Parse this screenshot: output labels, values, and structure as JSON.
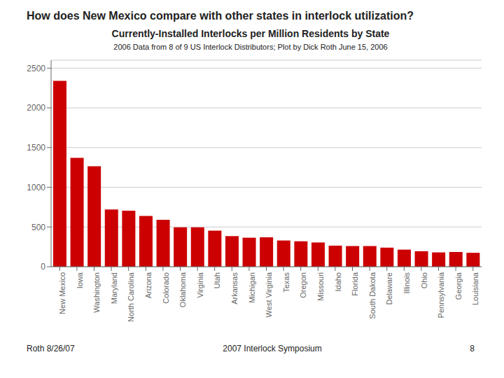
{
  "chart_data": {
    "type": "bar",
    "title": "Currently-Installed Interlocks per Million Residents by State",
    "subtitle": "2006 Data from 8 of 9 US Interlock Distributors; Plot by Dick Roth June 15, 2006",
    "annotations": [
      "How does New Mexico compare with other states in interlock utilization?",
      "Roth 8/26/07",
      "2007 Interlock Symposium",
      "8"
    ],
    "categories": [
      "New Mexico",
      "Iowa",
      "Washington",
      "Maryland",
      "North Carolina",
      "Arizona",
      "Colorado",
      "Oklahoma",
      "Virginia",
      "Utah",
      "Arkansas",
      "Michigan",
      "West Virginia",
      "Texas",
      "Oregon",
      "Missouri",
      "Idaho",
      "Florida",
      "South Dakota",
      "Delaware",
      "Illinois",
      "Ohio",
      "Pennsylvania",
      "Georgia",
      "Louisiana"
    ],
    "values": [
      2340,
      1370,
      1265,
      720,
      705,
      640,
      590,
      495,
      495,
      455,
      385,
      365,
      370,
      330,
      320,
      305,
      265,
      260,
      260,
      240,
      215,
      195,
      180,
      185,
      175
    ],
    "color": "#cc0000",
    "ylim": [
      0,
      2600
    ],
    "yticks": [
      0,
      500,
      1000,
      1500,
      2000,
      2500
    ],
    "grid": true
  }
}
